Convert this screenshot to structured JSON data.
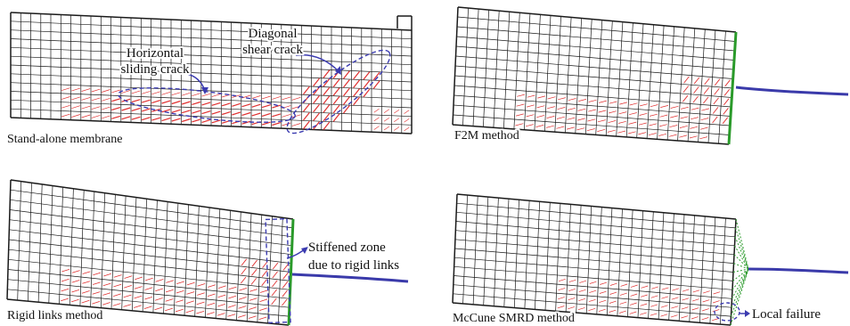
{
  "panels": [
    {
      "id": "standalone",
      "caption": "Stand-alone membrane"
    },
    {
      "id": "f2m",
      "caption": "F2M method"
    },
    {
      "id": "rigid",
      "caption": "Rigid links method"
    },
    {
      "id": "mccune",
      "caption": "McCune SMRD method"
    }
  ],
  "annotations": {
    "horizontal_1": "Horizontal",
    "horizontal_2": "sliding crack",
    "diagonal_1": "Diagonal",
    "diagonal_2": "shear crack",
    "stiffened_1": "Stiffened zone",
    "stiffened_2": "due to rigid links",
    "local_failure": "Local failure"
  },
  "colors": {
    "mesh": "#1a1a1a",
    "crack": "#e03030",
    "boundary": "#2a9a2a",
    "load_line": "#3a3aaa",
    "annotation": "#3b3bb0"
  }
}
